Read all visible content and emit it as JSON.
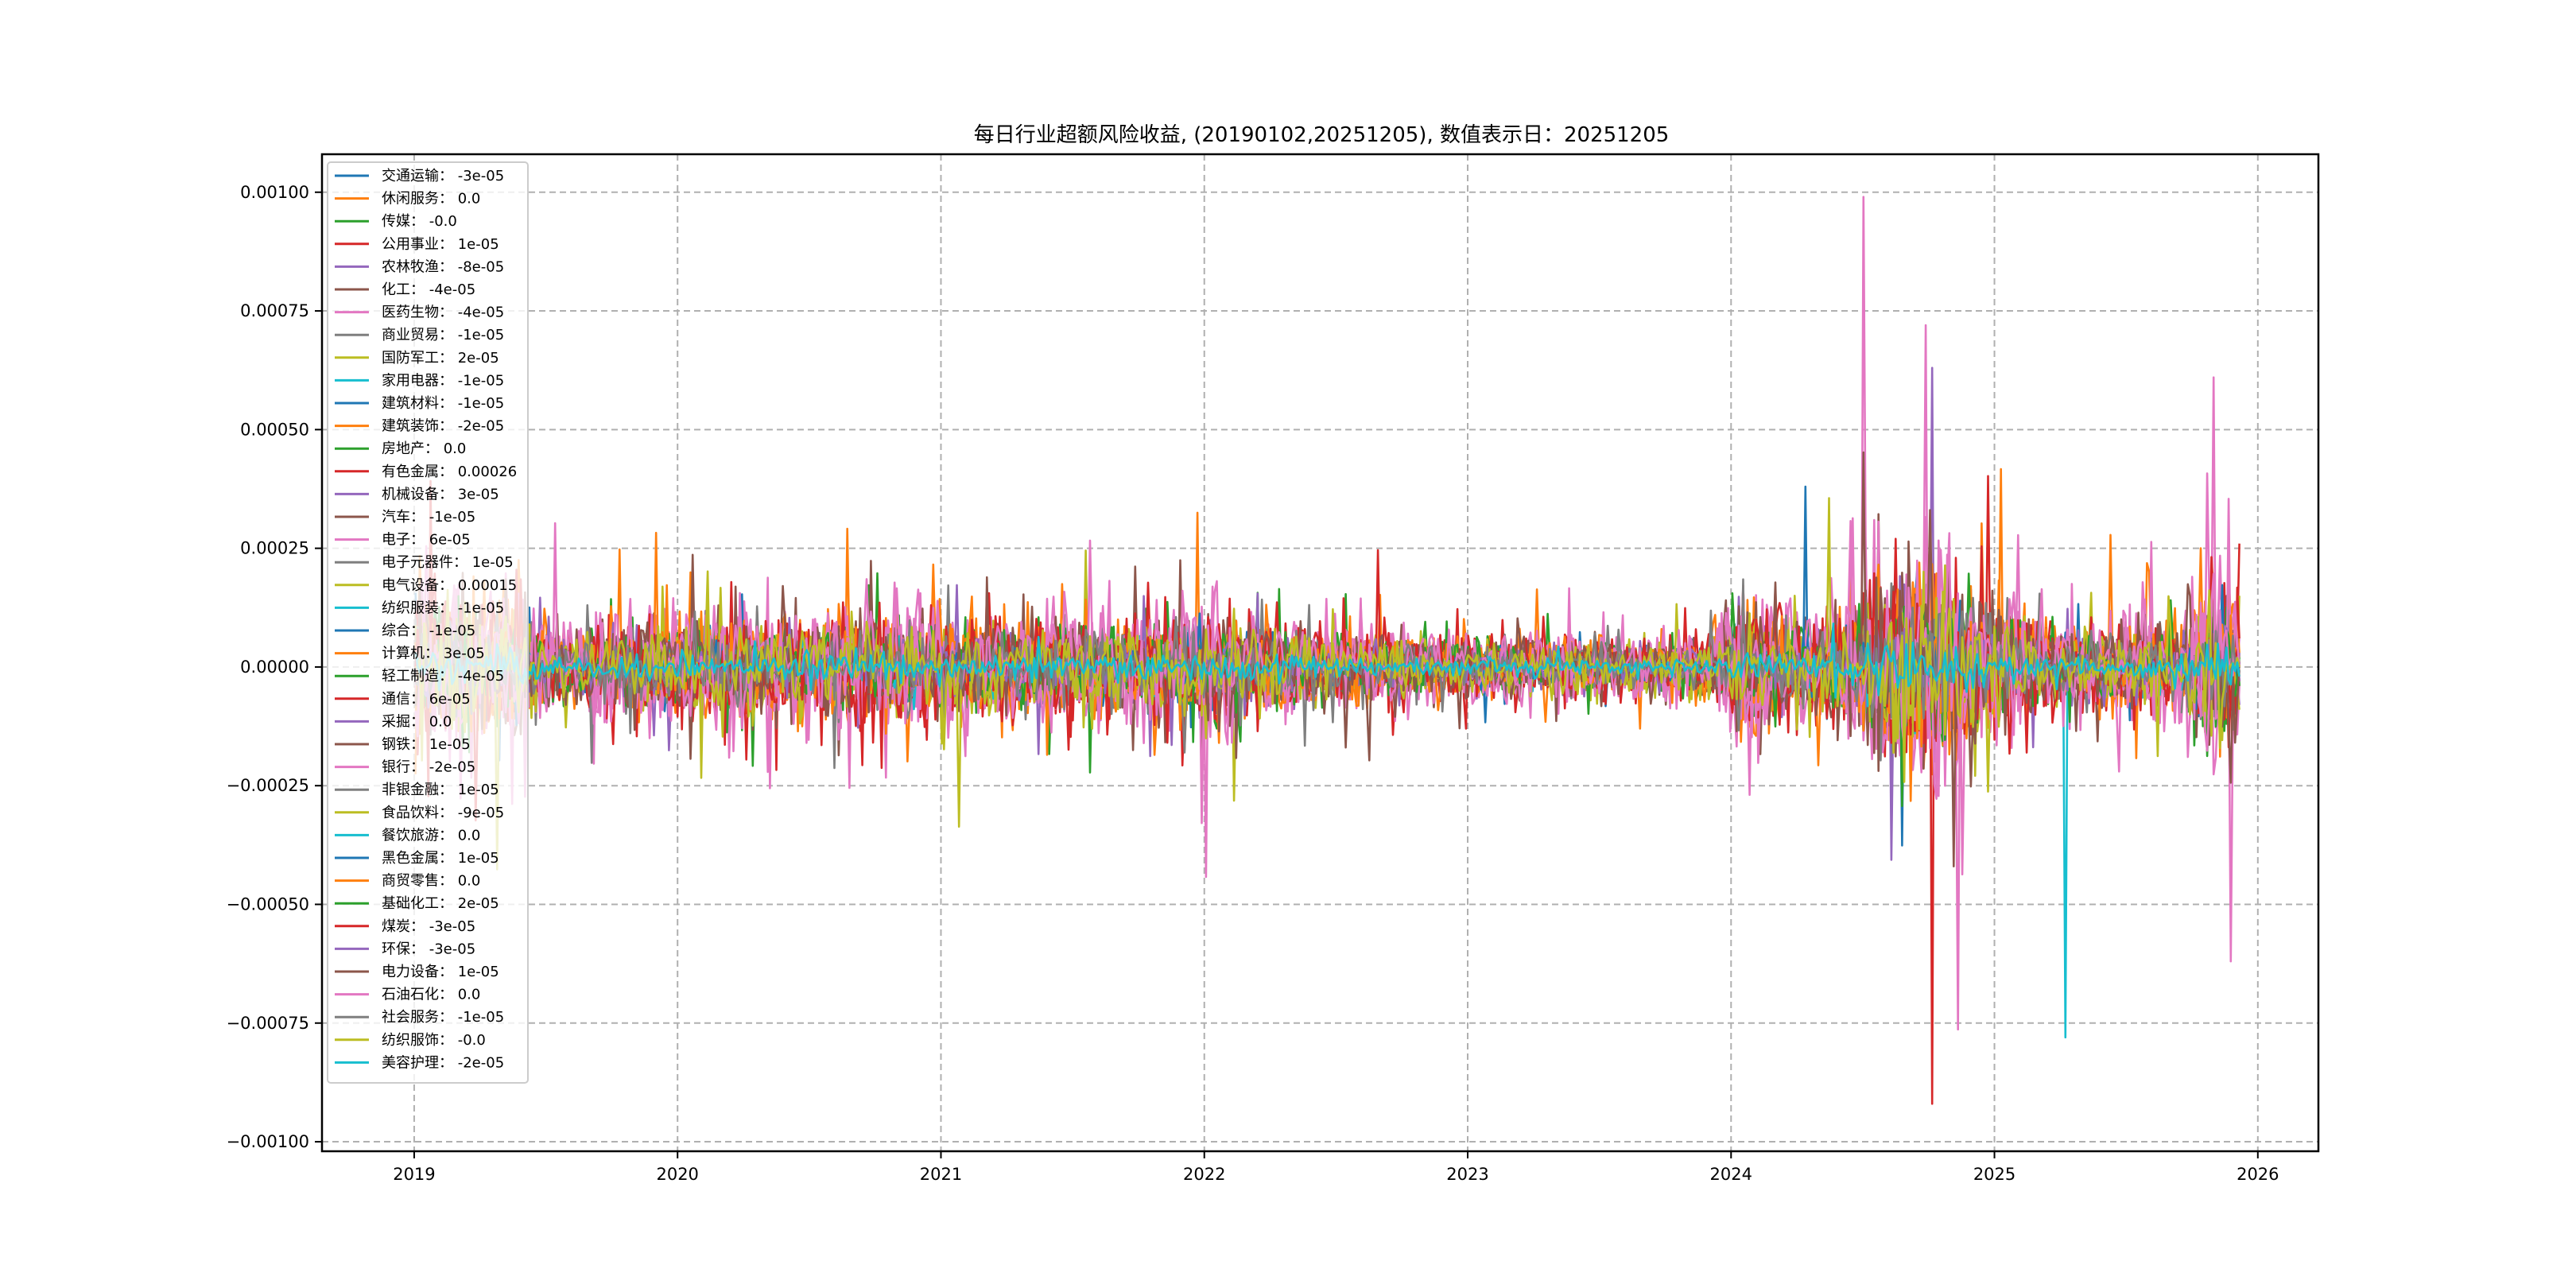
{
  "chart_data": {
    "type": "line",
    "title": "每日行业超额风险收益, (20190102,20251205),   数值表示日：20251205",
    "xlabel": "",
    "ylabel": "",
    "x_range": [
      "2019-01-02",
      "2025-12-05"
    ],
    "xlim": [
      2018.65,
      2026.23
    ],
    "ylim": [
      -0.00102,
      0.00108
    ],
    "grid": true,
    "legend_placement": "upper-left",
    "x_ticks": [
      "2019",
      "2020",
      "2021",
      "2022",
      "2023",
      "2024",
      "2025",
      "2026"
    ],
    "y_ticks": [
      {
        "value": 0.001,
        "label": "0.00100"
      },
      {
        "value": 0.00075,
        "label": "0.00075"
      },
      {
        "value": 0.0005,
        "label": "0.00050"
      },
      {
        "value": 0.00025,
        "label": "0.00025"
      },
      {
        "value": 0,
        "label": "0.00000"
      },
      {
        "value": -0.00025,
        "label": "−0.00025"
      },
      {
        "value": -0.0005,
        "label": "−0.00050"
      },
      {
        "value": -0.00075,
        "label": "−0.00075"
      },
      {
        "value": -0.001,
        "label": "−0.00100"
      }
    ],
    "volatility_profile": [
      {
        "year": 2019.0,
        "amp": 9e-05
      },
      {
        "year": 2019.4,
        "amp": 6e-05
      },
      {
        "year": 2019.6,
        "amp": 4e-05
      },
      {
        "year": 2020.0,
        "amp": 6e-05
      },
      {
        "year": 2020.3,
        "amp": 5e-05
      },
      {
        "year": 2020.6,
        "amp": 6e-05
      },
      {
        "year": 2021.5,
        "amp": 5e-05
      },
      {
        "year": 2022.0,
        "amp": 6e-05
      },
      {
        "year": 2022.5,
        "amp": 4e-05
      },
      {
        "year": 2023.0,
        "amp": 3.5e-05
      },
      {
        "year": 2023.9,
        "amp": 3e-05
      },
      {
        "year": 2024.05,
        "amp": 8e-05
      },
      {
        "year": 2024.3,
        "amp": 5e-05
      },
      {
        "year": 2024.7,
        "amp": 0.00012
      },
      {
        "year": 2024.95,
        "amp": 8e-05
      },
      {
        "year": 2025.3,
        "amp": 4e-05
      },
      {
        "year": 2025.7,
        "amp": 5e-05
      },
      {
        "year": 2025.85,
        "amp": 0.0001
      },
      {
        "year": 2025.93,
        "amp": 8e-05
      }
    ],
    "extremes": [
      {
        "series": 6,
        "year": 2024.5,
        "value": 0.00099
      },
      {
        "series": 3,
        "year": 2024.76,
        "value": -0.00092
      },
      {
        "series": 9,
        "year": 2025.27,
        "value": -0.00078
      },
      {
        "series": 4,
        "year": 2024.76,
        "value": 0.00063
      },
      {
        "series": 6,
        "year": 2024.74,
        "value": 0.00072
      },
      {
        "series": 10,
        "year": 2024.28,
        "value": 0.00038
      },
      {
        "series": 6,
        "year": 2025.83,
        "value": 0.00061
      },
      {
        "series": 6,
        "year": 2025.9,
        "value": -0.00062
      }
    ],
    "series": [
      {
        "name": "交通运输",
        "last": "-3e-05",
        "color": "#1f77b4",
        "scale": 0.9
      },
      {
        "name": "休闲服务",
        "last": "0.0",
        "color": "#ff7f0e",
        "scale": 1.3
      },
      {
        "name": "传媒",
        "last": "-0.0",
        "color": "#2ca02c",
        "scale": 1.1
      },
      {
        "name": "公用事业",
        "last": "1e-05",
        "color": "#d62728",
        "scale": 1.2
      },
      {
        "name": "农林牧渔",
        "last": "-8e-05",
        "color": "#9467bd",
        "scale": 0.9
      },
      {
        "name": "化工",
        "last": "-4e-05",
        "color": "#8c564b",
        "scale": 1.0
      },
      {
        "name": "医药生物",
        "last": "-4e-05",
        "color": "#e377c2",
        "scale": 1.6
      },
      {
        "name": "商业贸易",
        "last": "-1e-05",
        "color": "#7f7f7f",
        "scale": 0.9
      },
      {
        "name": "国防军工",
        "last": "2e-05",
        "color": "#bcbd22",
        "scale": 1.0
      },
      {
        "name": "家用电器",
        "last": "-1e-05",
        "color": "#17becf",
        "scale": 0.5
      },
      {
        "name": "建筑材料",
        "last": "-1e-05",
        "color": "#1f77b4",
        "scale": 0.6
      },
      {
        "name": "建筑装饰",
        "last": "-2e-05",
        "color": "#ff7f0e",
        "scale": 1.1
      },
      {
        "name": "房地产",
        "last": "0.0",
        "color": "#2ca02c",
        "scale": 0.9
      },
      {
        "name": "有色金属",
        "last": "0.00026",
        "color": "#d62728",
        "scale": 1.2
      },
      {
        "name": "机械设备",
        "last": "3e-05",
        "color": "#9467bd",
        "scale": 0.7
      },
      {
        "name": "汽车",
        "last": "-1e-05",
        "color": "#8c564b",
        "scale": 1.0
      },
      {
        "name": "电子",
        "last": "6e-05",
        "color": "#e377c2",
        "scale": 1.5
      },
      {
        "name": "电子元器件",
        "last": "1e-05",
        "color": "#7f7f7f",
        "scale": 0.8
      },
      {
        "name": "电气设备",
        "last": "0.00015",
        "color": "#bcbd22",
        "scale": 1.0
      },
      {
        "name": "纺织服装",
        "last": "-1e-05",
        "color": "#17becf",
        "scale": 0.4
      },
      {
        "name": "综合",
        "last": "-1e-05",
        "color": "#1f77b4",
        "scale": 0.5
      },
      {
        "name": "计算机",
        "last": "3e-05",
        "color": "#ff7f0e",
        "scale": 1.3
      },
      {
        "name": "轻工制造",
        "last": "-4e-05",
        "color": "#2ca02c",
        "scale": 0.8
      },
      {
        "name": "通信",
        "last": "6e-05",
        "color": "#d62728",
        "scale": 1.3
      },
      {
        "name": "采掘",
        "last": "0.0",
        "color": "#9467bd",
        "scale": 0.6
      },
      {
        "name": "钢铁",
        "last": "1e-05",
        "color": "#8c564b",
        "scale": 1.2
      },
      {
        "name": "银行",
        "last": "-2e-05",
        "color": "#e377c2",
        "scale": 1.5
      },
      {
        "name": "非银金融",
        "last": "1e-05",
        "color": "#7f7f7f",
        "scale": 0.8
      },
      {
        "name": "食品饮料",
        "last": "-9e-05",
        "color": "#bcbd22",
        "scale": 1.0
      },
      {
        "name": "餐饮旅游",
        "last": "0.0",
        "color": "#17becf",
        "scale": 0.4
      },
      {
        "name": "黑色金属",
        "last": "1e-05",
        "color": "#1f77b4",
        "scale": 0.5
      },
      {
        "name": "商贸零售",
        "last": "0.0",
        "color": "#ff7f0e",
        "scale": 1.0
      },
      {
        "name": "基础化工",
        "last": "2e-05",
        "color": "#2ca02c",
        "scale": 0.8
      },
      {
        "name": "煤炭",
        "last": "-3e-05",
        "color": "#d62728",
        "scale": 1.1
      },
      {
        "name": "环保",
        "last": "-3e-05",
        "color": "#9467bd",
        "scale": 0.6
      },
      {
        "name": "电力设备",
        "last": "1e-05",
        "color": "#8c564b",
        "scale": 1.2
      },
      {
        "name": "石油石化",
        "last": "0.0",
        "color": "#e377c2",
        "scale": 1.4
      },
      {
        "name": "社会服务",
        "last": "-1e-05",
        "color": "#7f7f7f",
        "scale": 0.8
      },
      {
        "name": "纺织服饰",
        "last": "-0.0",
        "color": "#bcbd22",
        "scale": 1.0
      },
      {
        "name": "美容护理",
        "last": "-2e-05",
        "color": "#17becf",
        "scale": 0.35
      }
    ]
  }
}
